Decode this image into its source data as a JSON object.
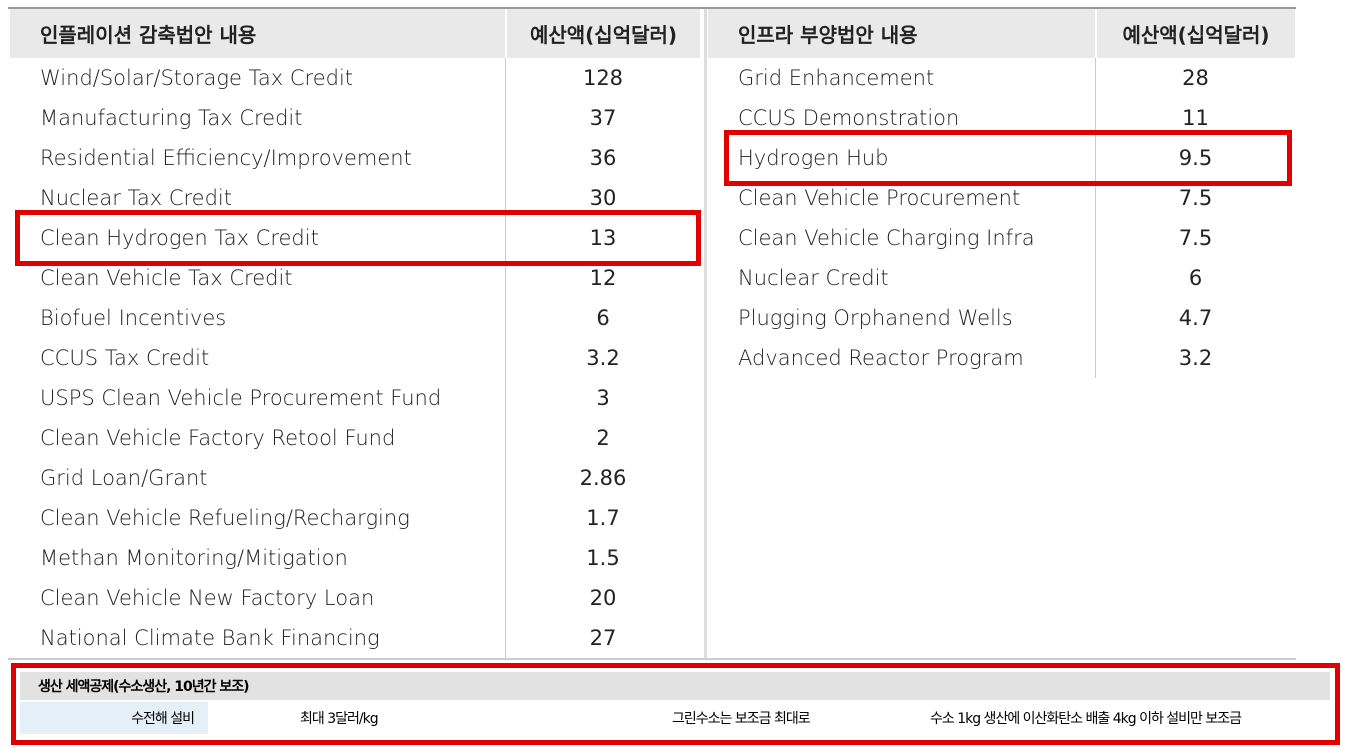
{
  "left": {
    "headers": [
      "인플레이션 감축법안 내용",
      "예산액(십억달러)"
    ],
    "rows": [
      [
        "Wind/Solar/Storage Tax Credit",
        "128"
      ],
      [
        "Manufacturing Tax Credit",
        "37"
      ],
      [
        "Residential Efficiency/Improvement",
        "36"
      ],
      [
        "Nuclear Tax Credit",
        "30"
      ],
      [
        "Clean Hydrogen Tax Credit",
        "13"
      ],
      [
        "Clean Vehicle Tax Credit",
        "12"
      ],
      [
        "Biofuel Incentives",
        "6"
      ],
      [
        "CCUS Tax Credit",
        "3.2"
      ],
      [
        "USPS Clean Vehicle Procurement Fund",
        "3"
      ],
      [
        "Clean Vehicle Factory Retool Fund",
        "2"
      ],
      [
        "Grid Loan/Grant",
        "2.86"
      ],
      [
        "Clean Vehicle Refueling/Recharging",
        "1.7"
      ],
      [
        "Methan Monitoring/Mitigation",
        "1.5"
      ],
      [
        "Clean Vehicle New Factory Loan",
        "20"
      ],
      [
        "National Climate Bank Financing",
        "27"
      ]
    ]
  },
  "right": {
    "headers": [
      "인프라 부양법안 내용",
      "예산액(십억달러)"
    ],
    "rows": [
      [
        "Grid Enhancement",
        "28"
      ],
      [
        "CCUS Demonstration",
        "11"
      ],
      [
        "Hydrogen Hub",
        "9.5"
      ],
      [
        "Clean Vehicle Procurement",
        "7.5"
      ],
      [
        "Clean Vehicle Charging Infra",
        "7.5"
      ],
      [
        "Nuclear Credit",
        "6"
      ],
      [
        "Plugging Orphanend Wells",
        "4.7"
      ],
      [
        "Advanced Reactor Program",
        "3.2"
      ]
    ]
  },
  "footer": {
    "title": "생산 세액공제(수소생산, 10년간 보조)",
    "cells": [
      "수전해 설비",
      "최대 3달러/kg",
      "그린수소는 보조금 최대로",
      "수소 1kg 생산에 이산화탄소 배출 4kg 이하 설비만 보조금"
    ]
  }
}
